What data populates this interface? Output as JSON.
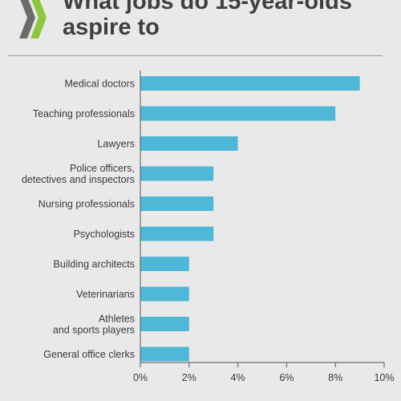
{
  "brand": {
    "logo_icon": "oecd-chevrons-icon",
    "logo_colors": [
      "#6b6b6b",
      "#8dc63f"
    ]
  },
  "chart_data": {
    "type": "bar",
    "orientation": "horizontal",
    "title": "What jobs do 15-year-olds\naspire to",
    "categories": [
      "Medical doctors",
      "Teaching professionals",
      "Lawyers",
      "Police officers,\ndetectives and inspectors",
      "Nursing professionals",
      "Psychologists",
      "Building architects",
      "Veterinarians",
      "Athletes\nand sports players",
      "General office clerks"
    ],
    "values": [
      9,
      8,
      4,
      3,
      3,
      3,
      2,
      2,
      2,
      2
    ],
    "xlim": [
      0,
      10
    ],
    "xticks": [
      0,
      2,
      4,
      6,
      8,
      10
    ],
    "xtick_labels": [
      "0%",
      "2%",
      "4%",
      "6%",
      "8%",
      "10%"
    ],
    "xlabel": "",
    "ylabel": "",
    "bar_color": "#4fb8d6",
    "grid": false,
    "legend": "none"
  }
}
